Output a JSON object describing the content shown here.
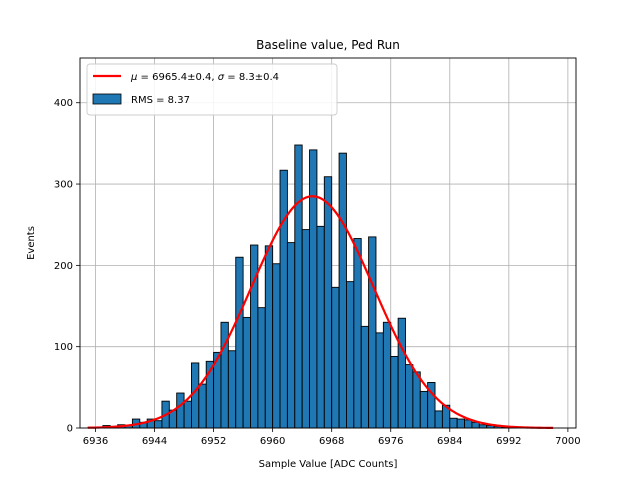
{
  "chart_data": {
    "type": "bar",
    "title": "Baseline value, Ped Run",
    "xlabel": "Sample Value [ADC Counts]",
    "ylabel": "Events",
    "xlim": [
      6933.9,
      7001.1
    ],
    "ylim": [
      0,
      455
    ],
    "xticks": [
      6936,
      6944,
      6952,
      6960,
      6968,
      6976,
      6984,
      6992,
      7000
    ],
    "yticks": [
      0,
      100,
      200,
      300,
      400
    ],
    "grid": true,
    "legend_position": "upper-left",
    "bin_width": 1,
    "bins": [
      {
        "x": 6935,
        "value": 1
      },
      {
        "x": 6936,
        "value": 1
      },
      {
        "x": 6937,
        "value": 3
      },
      {
        "x": 6938,
        "value": 2
      },
      {
        "x": 6939,
        "value": 4
      },
      {
        "x": 6940,
        "value": 3
      },
      {
        "x": 6941,
        "value": 11
      },
      {
        "x": 6942,
        "value": 7
      },
      {
        "x": 6943,
        "value": 11
      },
      {
        "x": 6944,
        "value": 9
      },
      {
        "x": 6945,
        "value": 33
      },
      {
        "x": 6946,
        "value": 22
      },
      {
        "x": 6947,
        "value": 43
      },
      {
        "x": 6948,
        "value": 33
      },
      {
        "x": 6949,
        "value": 80
      },
      {
        "x": 6950,
        "value": 54
      },
      {
        "x": 6951,
        "value": 82
      },
      {
        "x": 6952,
        "value": 93
      },
      {
        "x": 6953,
        "value": 130
      },
      {
        "x": 6954,
        "value": 95
      },
      {
        "x": 6955,
        "value": 210
      },
      {
        "x": 6956,
        "value": 136
      },
      {
        "x": 6957,
        "value": 225
      },
      {
        "x": 6958,
        "value": 148
      },
      {
        "x": 6959,
        "value": 224
      },
      {
        "x": 6960,
        "value": 202
      },
      {
        "x": 6961,
        "value": 317
      },
      {
        "x": 6962,
        "value": 228
      },
      {
        "x": 6963,
        "value": 348
      },
      {
        "x": 6964,
        "value": 244
      },
      {
        "x": 6965,
        "value": 342
      },
      {
        "x": 6966,
        "value": 248
      },
      {
        "x": 6967,
        "value": 309
      },
      {
        "x": 6968,
        "value": 173
      },
      {
        "x": 6969,
        "value": 338
      },
      {
        "x": 6970,
        "value": 180
      },
      {
        "x": 6971,
        "value": 233
      },
      {
        "x": 6972,
        "value": 125
      },
      {
        "x": 6973,
        "value": 235
      },
      {
        "x": 6974,
        "value": 117
      },
      {
        "x": 6975,
        "value": 130
      },
      {
        "x": 6976,
        "value": 88
      },
      {
        "x": 6977,
        "value": 135
      },
      {
        "x": 6978,
        "value": 78
      },
      {
        "x": 6979,
        "value": 69
      },
      {
        "x": 6980,
        "value": 45
      },
      {
        "x": 6981,
        "value": 56
      },
      {
        "x": 6982,
        "value": 21
      },
      {
        "x": 6983,
        "value": 28
      },
      {
        "x": 6984,
        "value": 12
      },
      {
        "x": 6985,
        "value": 11
      },
      {
        "x": 6986,
        "value": 10
      },
      {
        "x": 6987,
        "value": 7
      },
      {
        "x": 6988,
        "value": 4
      },
      {
        "x": 6989,
        "value": 3
      },
      {
        "x": 6990,
        "value": 2
      },
      {
        "x": 6991,
        "value": 1
      },
      {
        "x": 6992,
        "value": 1
      },
      {
        "x": 6993,
        "value": 0
      },
      {
        "x": 6994,
        "value": 0
      }
    ],
    "fit": {
      "type": "gaussian",
      "mu": 6965.4,
      "sigma": 8.3,
      "amplitude": 285,
      "x_range": [
        6935,
        6998
      ],
      "color": "#ff0000"
    },
    "bar_color": "#1f77b4",
    "bar_edge_color": "#000000",
    "legend": [
      {
        "label_prefix": "μ = ",
        "label": "6965.4±0.4, ",
        "label_sigma": "σ = ",
        "label_tail": "8.3±0.4",
        "kind": "line",
        "color": "#ff0000"
      },
      {
        "label": "RMS = 8.37",
        "kind": "patch",
        "color": "#1f77b4"
      }
    ]
  }
}
